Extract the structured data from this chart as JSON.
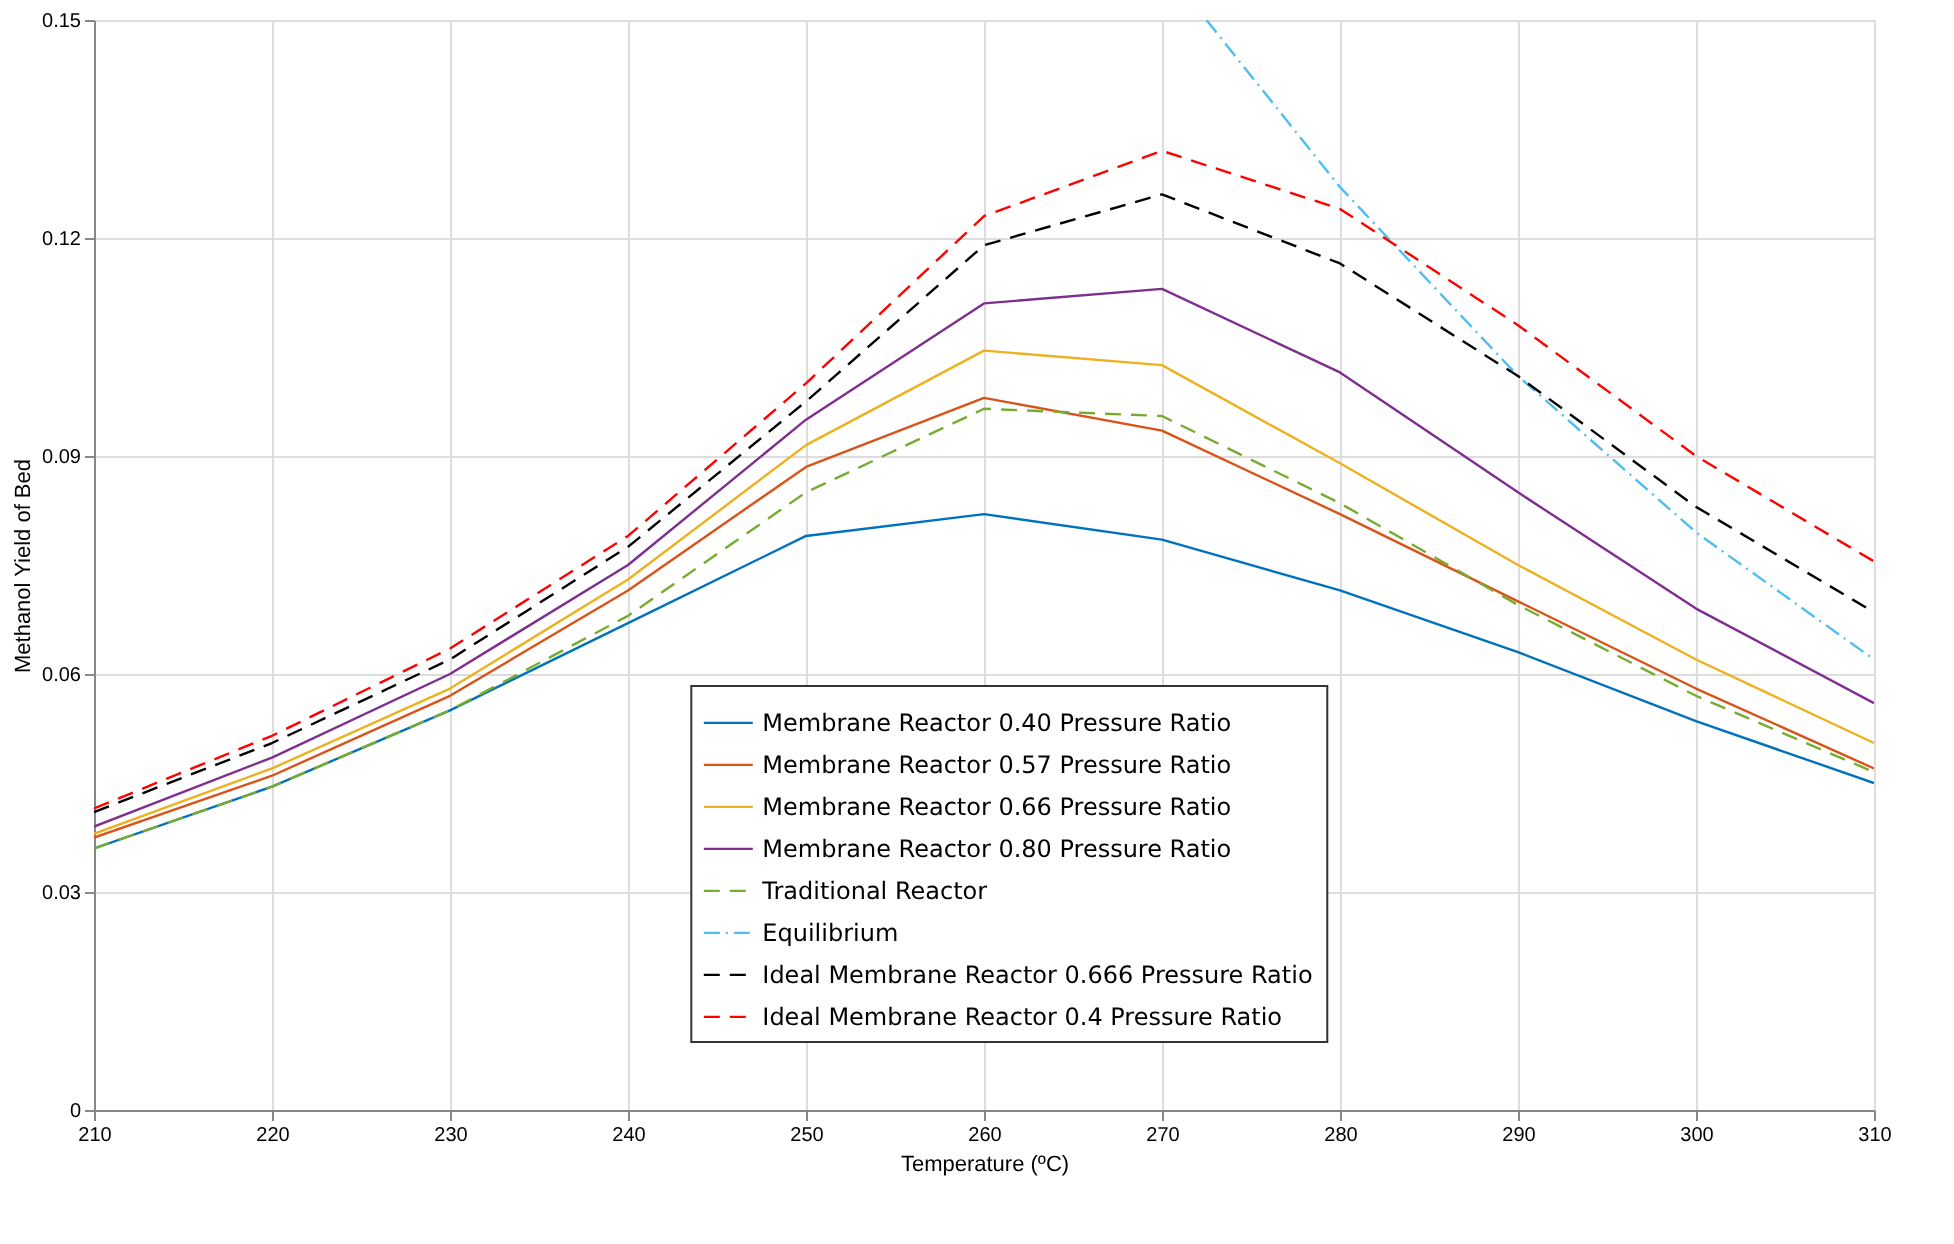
{
  "chart_data": {
    "type": "line",
    "xlabel": "Temperature (ºC)",
    "ylabel": "Methanol Yield of Bed",
    "x": [
      210,
      220,
      230,
      240,
      250,
      260,
      270,
      280,
      290,
      300,
      310
    ],
    "xlim": [
      210,
      310
    ],
    "xticks": [
      210,
      220,
      230,
      240,
      250,
      260,
      270,
      280,
      290,
      300,
      310
    ],
    "ylim": [
      0,
      0.15
    ],
    "yticks": [
      0,
      0.03,
      0.06,
      0.09,
      0.12,
      0.15
    ],
    "grid": true,
    "legend": "bottom",
    "series": [
      {
        "name": "Membrane Reactor 0.40 Pressure Ratio",
        "color": "#0072bd",
        "line_style": "solid",
        "values": [
          0.036,
          0.0445,
          0.055,
          0.067,
          0.079,
          0.082,
          0.0785,
          0.0715,
          0.063,
          0.0535,
          0.045
        ]
      },
      {
        "name": "Membrane Reactor 0.57 Pressure Ratio",
        "color": "#d95319",
        "line_style": "solid",
        "values": [
          0.0375,
          0.046,
          0.057,
          0.0715,
          0.0885,
          0.098,
          0.0935,
          0.082,
          0.07,
          0.058,
          0.047
        ]
      },
      {
        "name": "Membrane Reactor 0.66 Pressure Ratio",
        "color": "#edb120",
        "line_style": "solid",
        "values": [
          0.038,
          0.047,
          0.058,
          0.073,
          0.0915,
          0.1045,
          0.1025,
          0.089,
          0.075,
          0.062,
          0.0505
        ]
      },
      {
        "name": "Membrane Reactor 0.80 Pressure Ratio",
        "color": "#7e2f8e",
        "line_style": "solid",
        "values": [
          0.039,
          0.0485,
          0.06,
          0.075,
          0.095,
          0.111,
          0.113,
          0.1015,
          0.085,
          0.069,
          0.056
        ]
      },
      {
        "name": "Traditional Reactor",
        "color": "#77ac30",
        "line_style": "dashed",
        "values": [
          0.036,
          0.0445,
          0.055,
          0.068,
          0.085,
          0.0965,
          0.0955,
          0.0835,
          0.0695,
          0.057,
          0.0465
        ]
      },
      {
        "name": "Equilibrium",
        "color": "#4dbeee",
        "line_style": "dotted",
        "x": [
          272.5,
          280,
          290,
          300,
          310
        ],
        "values": [
          0.15,
          0.127,
          0.101,
          0.0795,
          0.062
        ]
      },
      {
        "name": "Ideal Membrane Reactor 0.666 Pressure Ratio",
        "color": "#000000",
        "line_style": "dashed",
        "values": [
          0.041,
          0.0505,
          0.062,
          0.0775,
          0.0975,
          0.119,
          0.126,
          0.1165,
          0.101,
          0.083,
          0.0685
        ]
      },
      {
        "name": "Ideal Membrane Reactor 0.4 Pressure Ratio",
        "color": "#ff0000",
        "line_style": "dashed",
        "values": [
          0.0415,
          0.0515,
          0.0635,
          0.079,
          0.1,
          0.123,
          0.132,
          0.124,
          0.108,
          0.09,
          0.0755
        ]
      }
    ]
  }
}
